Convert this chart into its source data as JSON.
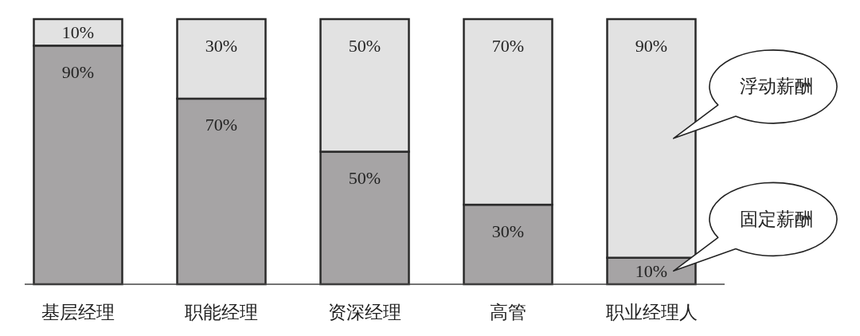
{
  "chart_data": {
    "type": "bar",
    "stacked": true,
    "tick_labels": "x",
    "categories": [
      "基层经理",
      "职能经理",
      "资深经理",
      "高管",
      "职业经理人"
    ],
    "series": [
      {
        "name": "固定薪酬",
        "color": "#a6a4a5",
        "values": [
          90,
          70,
          50,
          30,
          10
        ],
        "value_labels": [
          "90%",
          "70%",
          "50%",
          "30%",
          "10%"
        ]
      },
      {
        "name": "浮动薪酬",
        "color": "#e2e2e2",
        "values": [
          10,
          30,
          50,
          70,
          90
        ],
        "value_labels": [
          "10%",
          "30%",
          "50%",
          "70%",
          "90%"
        ]
      }
    ]
  }
}
